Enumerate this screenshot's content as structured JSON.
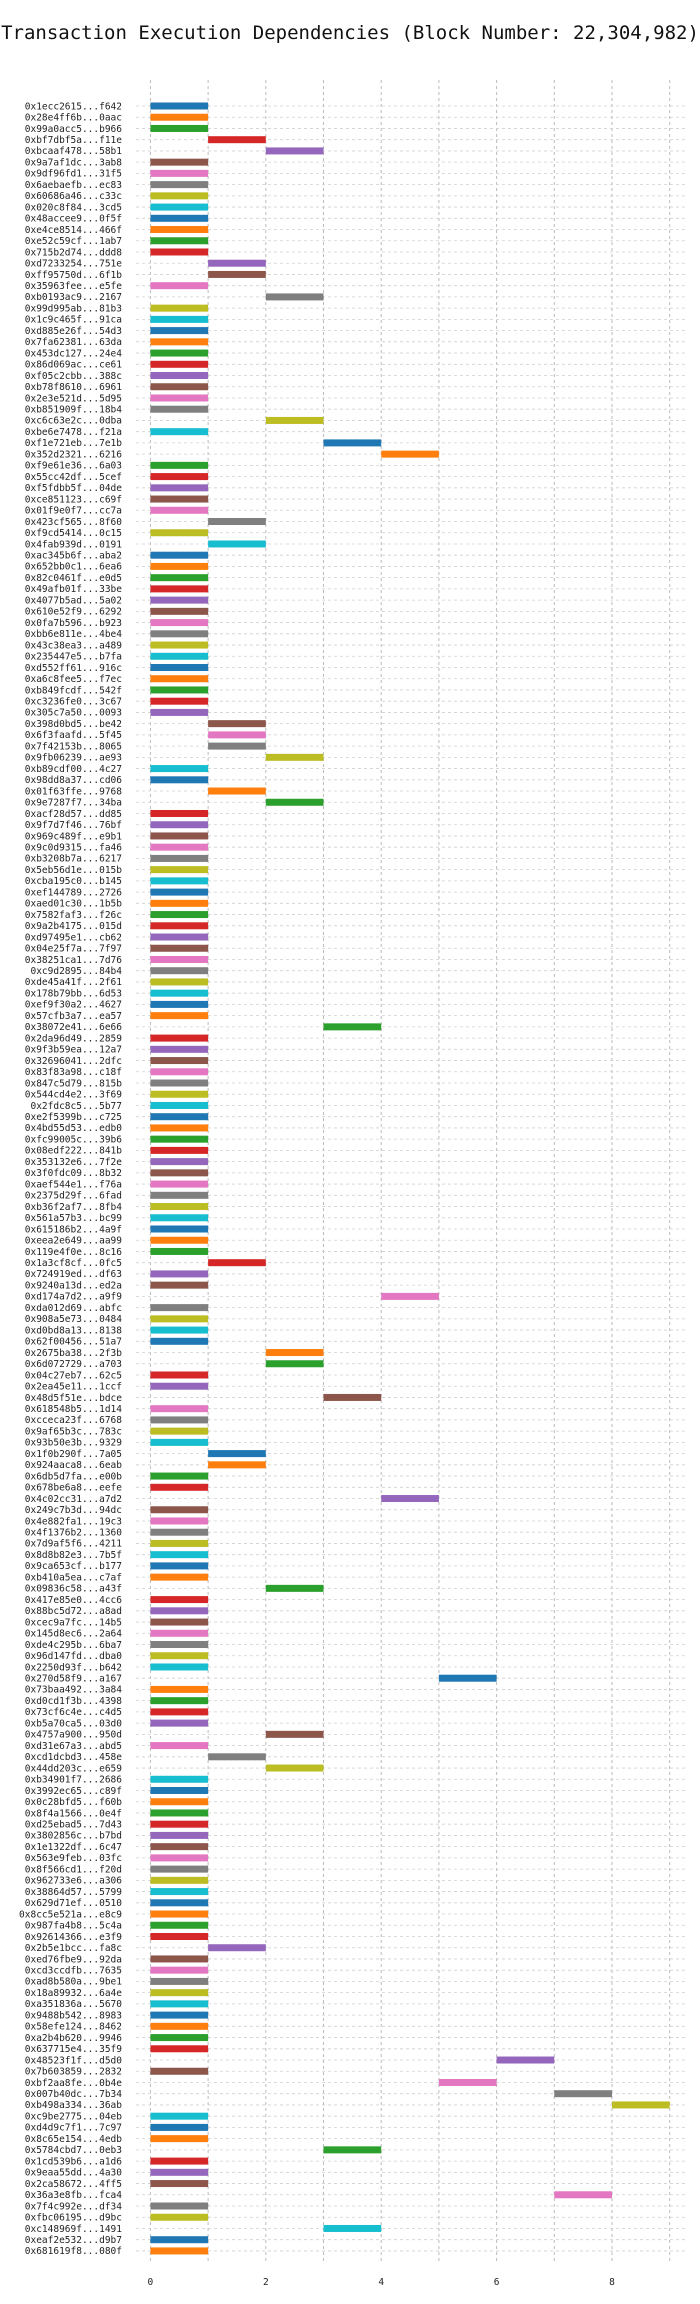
{
  "chart_data": {
    "type": "bar",
    "orientation": "horizontal-gantt",
    "title": "Transaction Execution Dependencies (Block Number: 22,304,982)",
    "xlabel": "",
    "ylabel": "",
    "xlim": [
      -0.25,
      9.3
    ],
    "xticks": [
      0,
      2,
      4,
      6,
      8
    ],
    "grid": true,
    "legend": "none",
    "palette": [
      "#1f77b4",
      "#ff7f0e",
      "#2ca02c",
      "#d62728",
      "#9467bd",
      "#8c564b",
      "#e377c2",
      "#7f7f7f",
      "#bcbd22",
      "#17becf"
    ],
    "categories": [
      "0x1ecc2615...f642",
      "0x28e4ff6b...0aac",
      "0x99a0acc5...b966",
      "0xbf7dbf5a...f11e",
      "0xbcaaf478...58b1",
      "0x9a7af1dc...3ab8",
      "0x9df96fd1...31f5",
      "0x6aebaefb...ec83",
      "0x60686a46...c33c",
      "0x020c8f84...3cd5",
      "0x48accee9...0f5f",
      "0xe4ce8514...466f",
      "0xe52c59cf...1ab7",
      "0x715b2d74...ddd8",
      "0xd7233254...751e",
      "0xff95750d...6f1b",
      "0x35963fee...e5fe",
      "0xb0193ac9...2167",
      "0x99d995ab...81b3",
      "0x1c9c465f...91ca",
      "0xd885e26f...54d3",
      "0x7fa62381...63da",
      "0x453dc127...24e4",
      "0x86d069ac...ce61",
      "0xf05c2cbb...388c",
      "0xb78f8610...6961",
      "0x2e3e521d...5d95",
      "0xb851909f...18b4",
      "0xc6c63e2c...0dba",
      "0xbe6e7478...f21a",
      "0xf1e721eb...7e1b",
      "0x352d2321...6216",
      "0xf9e61e36...6a03",
      "0x55cc42df...5cef",
      "0xf5fdbb5f...04de",
      "0xce851123...c69f",
      "0x01f9e0f7...cc7a",
      "0x423cf565...8f60",
      "0xf9cd5414...0c15",
      "0x4fab939d...0191",
      "0xac345b6f...aba2",
      "0x652bb0c1...6ea6",
      "0x82c0461f...e0d5",
      "0x49afb01f...33be",
      "0x4077b5ad...5a02",
      "0x610e52f9...6292",
      "0x0fa7b596...b923",
      "0xbb6e811e...4be4",
      "0x43c38ea3...a489",
      "0x235447e5...b7fa",
      "0xd552ff61...916c",
      "0xa6c8fee5...f7ec",
      "0xb849fcdf...542f",
      "0xc3236fe0...3c67",
      "0x305c7a50...0093",
      "0x398d0bd5...be42",
      "0x6f3faafd...5f45",
      "0x7f42153b...8065",
      "0x9fb06239...ae93",
      "0xb89cdf00...4c27",
      "0x98dd8a37...cd06",
      "0x01f63ffe...9768",
      "0x9e7287f7...34ba",
      "0xacf28d57...dd85",
      "0x9f7d7f46...76bf",
      "0x969c489f...e9b1",
      "0x9c0d9315...fa46",
      "0xb3208b7a...6217",
      "0x5eb56d1e...015b",
      "0xcba195c0...b145",
      "0xef144789...2726",
      "0xaed01c30...1b5b",
      "0x7582faf3...f26c",
      "0x9a2b4175...015d",
      "0xd97495e1...cb62",
      "0x04e25f7a...7f97",
      "0x38251ca1...7d76",
      "0xc9d2895...84b4",
      "0xde45a41f...2f61",
      "0x178b79bb...6d53",
      "0xef9f30a2...4627",
      "0x57cfb3a7...ea57",
      "0x38072e41...6e66",
      "0x2da96d49...2859",
      "0x9f3b59ea...12a7",
      "0x32696041...2dfc",
      "0x83f83a98...c18f",
      "0x847c5d79...815b",
      "0x544cd4e2...3f69",
      "0x2fdc8c5...5b77",
      "0xe2f5399b...c725",
      "0x4bd55d53...edb0",
      "0xfc99005c...39b6",
      "0x08edf222...841b",
      "0x353132e6...7f2e",
      "0x3f0fdc09...8b32",
      "0xaef544e1...f76a",
      "0x2375d29f...6fad",
      "0xb36f2af7...8fb4",
      "0x561a57b3...bc99",
      "0x615186b2...4a9f",
      "0xeea2e649...aa99",
      "0x119e4f0e...8c16",
      "0x1a3cf8cf...0fc5",
      "0x724919ed...df63",
      "0x9240a13d...ed2a",
      "0xd174a7d2...a9f9",
      "0xda012d69...abfc",
      "0x908a5e73...0484",
      "0xd0bd8a13...8138",
      "0x62f00456...51a7",
      "0x2675ba38...2f3b",
      "0x6d072729...a703",
      "0x04c27eb7...62c5",
      "0x2ea45e11...1ccf",
      "0x48d5f51e...bdce",
      "0x618548b5...1d14",
      "0xcceca23f...6768",
      "0x9af65b3c...783c",
      "0x93b50e3b...9329",
      "0x1f0b290f...7a05",
      "0x924aaca8...6eab",
      "0x6db5d7fa...e00b",
      "0x678be6a8...eefe",
      "0x4c02cc31...a7d2",
      "0x249c7b3d...94dc",
      "0x4e882fa1...19c3",
      "0x4f1376b2...1360",
      "0x7d9af5f6...4211",
      "0x8d8b82e3...7b5f",
      "0x9ca653cf...b177",
      "0xb410a5ea...c7af",
      "0x09836c58...a43f",
      "0x417e85e0...4cc6",
      "0x88bc5d72...a8ad",
      "0xcec9a7fc...14b5",
      "0x145d8ec6...2a64",
      "0xde4c295b...6ba7",
      "0x96d147fd...dba0",
      "0x2250d93f...b642",
      "0x270d58f9...a167",
      "0x73baa492...3a84",
      "0xd0cd1f3b...4398",
      "0x73cf6c4e...c4d5",
      "0xb5a70ca5...03d0",
      "0x4757a900...950d",
      "0xd31e67a3...abd5",
      "0xcd1dcbd3...458e",
      "0x44dd203c...e659",
      "0xb34901f7...2686",
      "0x3992ec65...c89f",
      "0x0c28bfd5...f60b",
      "0x8f4a1566...0e4f",
      "0xd25ebad5...7d43",
      "0x3802856c...b7bd",
      "0x1e1322df...6c47",
      "0x563e9feb...03fc",
      "0x8f566cd1...f20d",
      "0x962733e6...a306",
      "0x38864d57...5799",
      "0x629d71ef...0510",
      "0x8cc5e521a...e8c9",
      "0x987fa4b8...5c4a",
      "0x92614366...e3f9",
      "0x2b5e1bcc...fa8c",
      "0xed76fbe9...92da",
      "0xcd3ccdfb...7635",
      "0xad8b580a...9be1",
      "0x18a89932...6a4e",
      "0xa351836a...5670",
      "0x9488b542...8983",
      "0x58efe124...8462",
      "0xa2b4b620...9946",
      "0x637715e4...35f9",
      "0x48523f1f...d5d0",
      "0x7b603859...2832",
      "0xbf2aa8fe...0b4e",
      "0x007b40dc...7b34",
      "0xb498a334...36ab",
      "0xc9be2775...04eb",
      "0xd4d9c7f1...7c97",
      "0x8c65e154...4edb",
      "0x5784cbd7...0eb3",
      "0x1cd539b6...a1d6",
      "0x9eaa55dd...4a30",
      "0x2ca58672...4ff5",
      "0x36a3e8fb...fca4",
      "0x7f4c992e...df34",
      "0xfbc06195...d9bc",
      "0xc148969f...1491",
      "0xeaf2e532...d9b7",
      "0x681619f8...080f"
    ],
    "values": [
      [
        0,
        1
      ],
      [
        0,
        1
      ],
      [
        0,
        1
      ],
      [
        1,
        2
      ],
      [
        2,
        3
      ],
      [
        0,
        1
      ],
      [
        0,
        1
      ],
      [
        0,
        1
      ],
      [
        0,
        1
      ],
      [
        0,
        1
      ],
      [
        0,
        1
      ],
      [
        0,
        1
      ],
      [
        0,
        1
      ],
      [
        0,
        1
      ],
      [
        1,
        2
      ],
      [
        1,
        2
      ],
      [
        0,
        1
      ],
      [
        2,
        3
      ],
      [
        0,
        1
      ],
      [
        0,
        1
      ],
      [
        0,
        1
      ],
      [
        0,
        1
      ],
      [
        0,
        1
      ],
      [
        0,
        1
      ],
      [
        0,
        1
      ],
      [
        0,
        1
      ],
      [
        0,
        1
      ],
      [
        0,
        1
      ],
      [
        2,
        3
      ],
      [
        0,
        1
      ],
      [
        3,
        4
      ],
      [
        4,
        5
      ],
      [
        0,
        1
      ],
      [
        0,
        1
      ],
      [
        0,
        1
      ],
      [
        0,
        1
      ],
      [
        0,
        1
      ],
      [
        1,
        2
      ],
      [
        0,
        1
      ],
      [
        1,
        2
      ],
      [
        0,
        1
      ],
      [
        0,
        1
      ],
      [
        0,
        1
      ],
      [
        0,
        1
      ],
      [
        0,
        1
      ],
      [
        0,
        1
      ],
      [
        0,
        1
      ],
      [
        0,
        1
      ],
      [
        0,
        1
      ],
      [
        0,
        1
      ],
      [
        0,
        1
      ],
      [
        0,
        1
      ],
      [
        0,
        1
      ],
      [
        0,
        1
      ],
      [
        0,
        1
      ],
      [
        1,
        2
      ],
      [
        1,
        2
      ],
      [
        1,
        2
      ],
      [
        2,
        3
      ],
      [
        0,
        1
      ],
      [
        0,
        1
      ],
      [
        1,
        2
      ],
      [
        2,
        3
      ],
      [
        0,
        1
      ],
      [
        0,
        1
      ],
      [
        0,
        1
      ],
      [
        0,
        1
      ],
      [
        0,
        1
      ],
      [
        0,
        1
      ],
      [
        0,
        1
      ],
      [
        0,
        1
      ],
      [
        0,
        1
      ],
      [
        0,
        1
      ],
      [
        0,
        1
      ],
      [
        0,
        1
      ],
      [
        0,
        1
      ],
      [
        0,
        1
      ],
      [
        0,
        1
      ],
      [
        0,
        1
      ],
      [
        0,
        1
      ],
      [
        0,
        1
      ],
      [
        0,
        1
      ],
      [
        3,
        4
      ],
      [
        0,
        1
      ],
      [
        0,
        1
      ],
      [
        0,
        1
      ],
      [
        0,
        1
      ],
      [
        0,
        1
      ],
      [
        0,
        1
      ],
      [
        0,
        1
      ],
      [
        0,
        1
      ],
      [
        0,
        1
      ],
      [
        0,
        1
      ],
      [
        0,
        1
      ],
      [
        0,
        1
      ],
      [
        0,
        1
      ],
      [
        0,
        1
      ],
      [
        0,
        1
      ],
      [
        0,
        1
      ],
      [
        0,
        1
      ],
      [
        0,
        1
      ],
      [
        0,
        1
      ],
      [
        0,
        1
      ],
      [
        1,
        2
      ],
      [
        0,
        1
      ],
      [
        0,
        1
      ],
      [
        4,
        5
      ],
      [
        0,
        1
      ],
      [
        0,
        1
      ],
      [
        0,
        1
      ],
      [
        0,
        1
      ],
      [
        2,
        3
      ],
      [
        2,
        3
      ],
      [
        0,
        1
      ],
      [
        0,
        1
      ],
      [
        3,
        4
      ],
      [
        0,
        1
      ],
      [
        0,
        1
      ],
      [
        0,
        1
      ],
      [
        0,
        1
      ],
      [
        1,
        2
      ],
      [
        1,
        2
      ],
      [
        0,
        1
      ],
      [
        0,
        1
      ],
      [
        4,
        5
      ],
      [
        0,
        1
      ],
      [
        0,
        1
      ],
      [
        0,
        1
      ],
      [
        0,
        1
      ],
      [
        0,
        1
      ],
      [
        0,
        1
      ],
      [
        0,
        1
      ],
      [
        2,
        3
      ],
      [
        0,
        1
      ],
      [
        0,
        1
      ],
      [
        0,
        1
      ],
      [
        0,
        1
      ],
      [
        0,
        1
      ],
      [
        0,
        1
      ],
      [
        0,
        1
      ],
      [
        5,
        6
      ],
      [
        0,
        1
      ],
      [
        0,
        1
      ],
      [
        0,
        1
      ],
      [
        0,
        1
      ],
      [
        2,
        3
      ],
      [
        0,
        1
      ],
      [
        1,
        2
      ],
      [
        2,
        3
      ],
      [
        0,
        1
      ],
      [
        0,
        1
      ],
      [
        0,
        1
      ],
      [
        0,
        1
      ],
      [
        0,
        1
      ],
      [
        0,
        1
      ],
      [
        0,
        1
      ],
      [
        0,
        1
      ],
      [
        0,
        1
      ],
      [
        0,
        1
      ],
      [
        0,
        1
      ],
      [
        0,
        1
      ],
      [
        0,
        1
      ],
      [
        0,
        1
      ],
      [
        0,
        1
      ],
      [
        1,
        2
      ],
      [
        0,
        1
      ],
      [
        0,
        1
      ],
      [
        0,
        1
      ],
      [
        0,
        1
      ],
      [
        0,
        1
      ],
      [
        0,
        1
      ],
      [
        0,
        1
      ],
      [
        0,
        1
      ],
      [
        0,
        1
      ],
      [
        6,
        7
      ],
      [
        0,
        1
      ],
      [
        5,
        6
      ],
      [
        7,
        8
      ],
      [
        8,
        9
      ],
      [
        0,
        1
      ],
      [
        0,
        1
      ],
      [
        0,
        1
      ],
      [
        3,
        4
      ],
      [
        0,
        1
      ],
      [
        0,
        1
      ],
      [
        0,
        1
      ],
      [
        7,
        8
      ],
      [
        0,
        1
      ],
      [
        0,
        1
      ],
      [
        3,
        4
      ],
      [
        0,
        1
      ],
      [
        0,
        1
      ]
    ]
  }
}
